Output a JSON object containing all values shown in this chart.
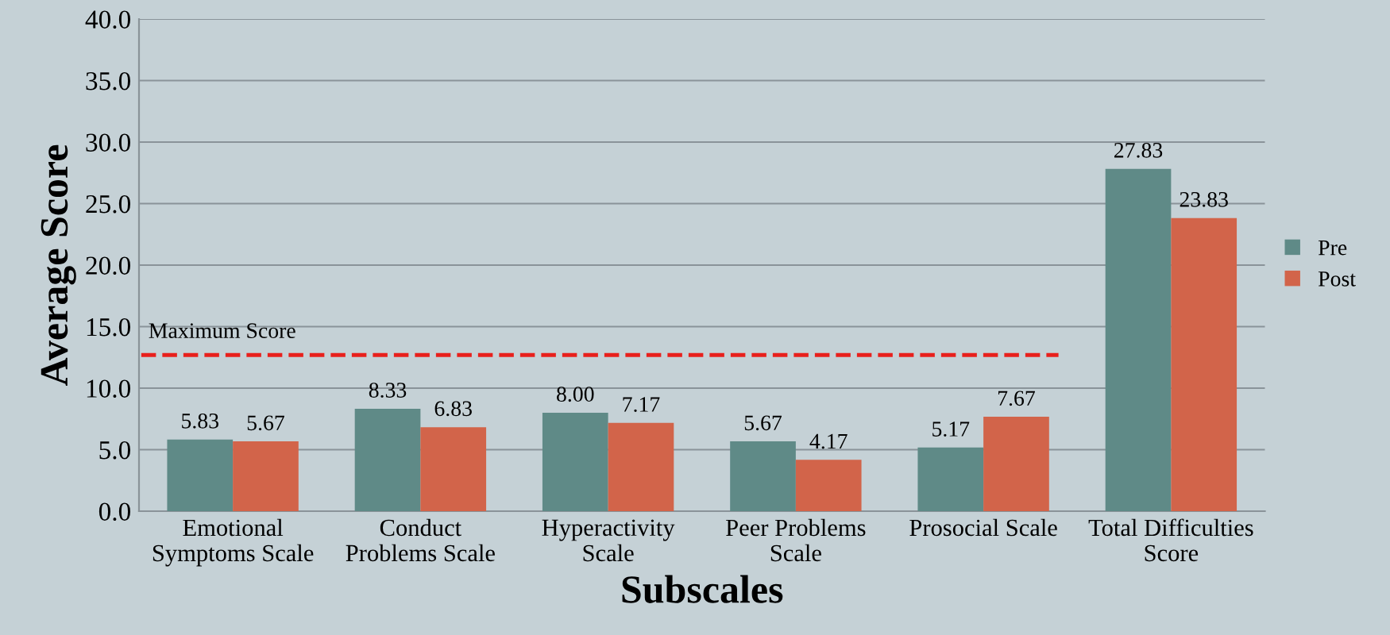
{
  "chart_data": {
    "type": "bar",
    "xlabel": "Subscales",
    "ylabel": "Average Score",
    "categories": [
      "Emotional\nSymptoms Scale",
      "Conduct\nProblems Scale",
      "Hyperactivity\nScale",
      "Peer Problems\nScale",
      "Prosocial Scale",
      "Total Difficulties\nScore"
    ],
    "series": [
      {
        "name": "Pre",
        "color": "#5f8a87",
        "values": [
          5.83,
          8.33,
          8.0,
          5.67,
          5.17,
          27.83
        ],
        "value_labels": [
          "5.83",
          "8.33",
          "8.00",
          "5.67",
          "5.17",
          "27.83"
        ]
      },
      {
        "name": "Post",
        "color": "#d2644a",
        "values": [
          5.67,
          6.83,
          7.17,
          4.17,
          7.67,
          23.83
        ],
        "value_labels": [
          "5.67",
          "6.83",
          "7.17",
          "4.17",
          "7.67",
          "23.83"
        ]
      }
    ],
    "ylim": [
      0,
      40
    ],
    "yticks": [
      {
        "value": 0,
        "label": "0.0"
      },
      {
        "value": 5,
        "label": "5.0"
      },
      {
        "value": 10,
        "label": "10.0"
      },
      {
        "value": 15,
        "label": "15.0"
      },
      {
        "value": 20,
        "label": "20.0"
      },
      {
        "value": 25,
        "label": "25.0"
      },
      {
        "value": 30,
        "label": "30.0"
      },
      {
        "value": 35,
        "label": "35.0"
      },
      {
        "value": 40,
        "label": "40.0"
      }
    ],
    "grid": "y",
    "legend": "right",
    "ref_lines": [
      {
        "axis": "y",
        "value": 12.7,
        "label": "Maximum Score",
        "color": "#e8201c",
        "line_style": "dashed"
      }
    ]
  }
}
